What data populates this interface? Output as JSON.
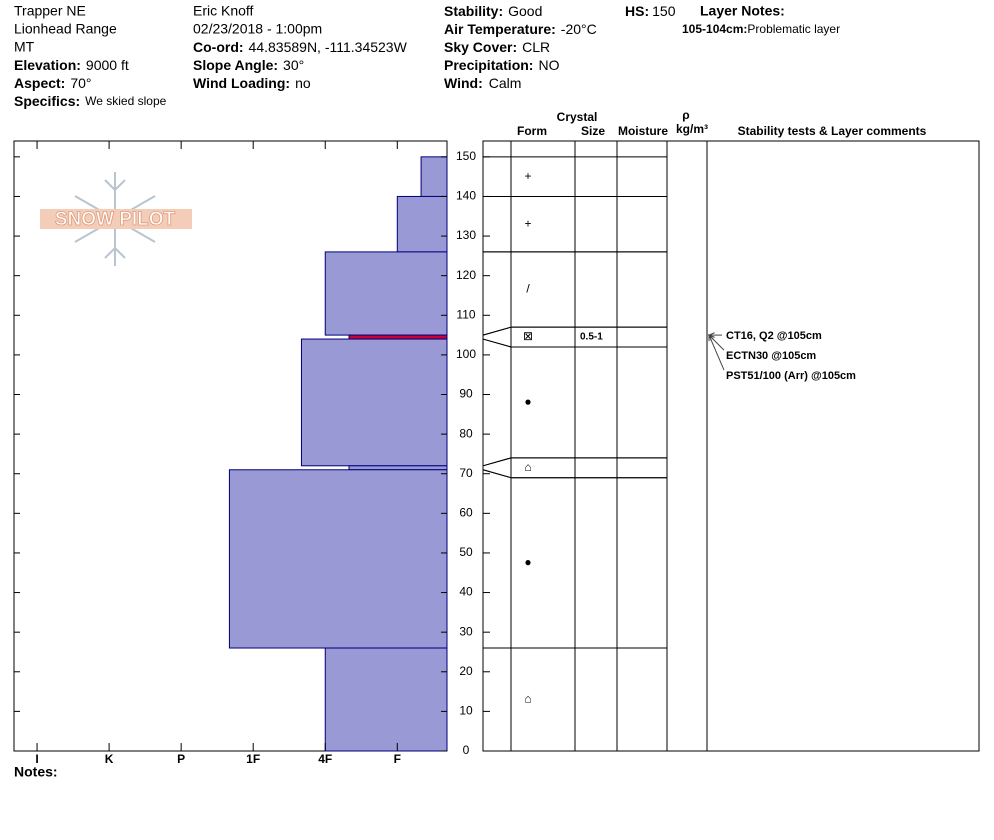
{
  "header": {
    "site": "Trapper NE",
    "range": "Lionhead Range",
    "state": "MT",
    "elevation": {
      "label": "Elevation:",
      "value": "9000 ft"
    },
    "aspect": {
      "label": "Aspect:",
      "value": "70°"
    },
    "specifics": {
      "label": "Specifics:",
      "value": "We skied slope"
    },
    "observer": "Eric Knoff",
    "datetime": "02/23/2018 - 1:00pm",
    "coord": {
      "label": "Co-ord:",
      "value": "44.83589N, -111.34523W"
    },
    "slope": {
      "label": "Slope Angle:",
      "value": "30°"
    },
    "wind_loading": {
      "label": "Wind Loading:",
      "value": "no"
    },
    "stability": {
      "label": "Stability:",
      "value": "Good"
    },
    "air_temp": {
      "label": "Air Temperature:",
      "value": "-20°C"
    },
    "sky": {
      "label": "Sky Cover:",
      "value": "CLR"
    },
    "precip": {
      "label": "Precipitation:",
      "value": "NO"
    },
    "wind": {
      "label": "Wind:",
      "value": "Calm"
    },
    "hs": {
      "label": "HS:",
      "value": 150
    },
    "layer_notes": {
      "label": "Layer Notes:",
      "depth": "105-104cm:",
      "note": "Problematic layer"
    }
  },
  "logo": "SNOW PILOT",
  "notes_label": "Notes:",
  "chart_data": {
    "type": "snow_profile",
    "ylim": [
      0,
      154
    ],
    "yticks": [
      0,
      10,
      20,
      30,
      40,
      50,
      60,
      70,
      80,
      90,
      100,
      110,
      120,
      130,
      140,
      150
    ],
    "xlim": [
      6.32,
      0.31
    ],
    "xticks": [
      {
        "value": 6,
        "label": "I"
      },
      {
        "value": 5,
        "label": "K"
      },
      {
        "value": 4,
        "label": "P"
      },
      {
        "value": 3,
        "label": "1F"
      },
      {
        "value": 2,
        "label": "4F"
      },
      {
        "value": 1,
        "label": "F"
      }
    ],
    "color": "#9999d6",
    "edge_color": "#00007a",
    "columns": {
      "crystal": "Crystal",
      "form": "Form",
      "size": "Size",
      "moisture": "Moisture",
      "density_symbol": "ρ",
      "density_unit": "kg/m³",
      "comments": "Stability tests & Layer comments"
    },
    "layers": [
      {
        "top": 150,
        "bottom": 140,
        "hardness": 0.67,
        "form": "+"
      },
      {
        "top": 140,
        "bottom": 126,
        "hardness": 1,
        "form": "+"
      },
      {
        "top": 126,
        "bottom": 105,
        "hardness": 2,
        "form": "/"
      },
      {
        "top": 105,
        "bottom": 104,
        "hardness": 1.67,
        "form": "⊠",
        "size": "0.5-1",
        "color": "#cc0033"
      },
      {
        "top": 104,
        "bottom": 72,
        "hardness": 2.33,
        "form": "●"
      },
      {
        "top": 72,
        "bottom": 71,
        "hardness": 1.67,
        "form": "⌂"
      },
      {
        "top": 71,
        "bottom": 26,
        "hardness": 3.33,
        "form": "●"
      },
      {
        "top": 26,
        "bottom": 0,
        "hardness": 2,
        "form": "⌂"
      }
    ],
    "tests": [
      {
        "label": "CT16, Q2 @105cm",
        "depth": 105
      },
      {
        "label": "ECTN30 @105cm",
        "depth": 105
      },
      {
        "label": "PST51/100 (Arr) @105cm",
        "depth": 105
      }
    ]
  }
}
